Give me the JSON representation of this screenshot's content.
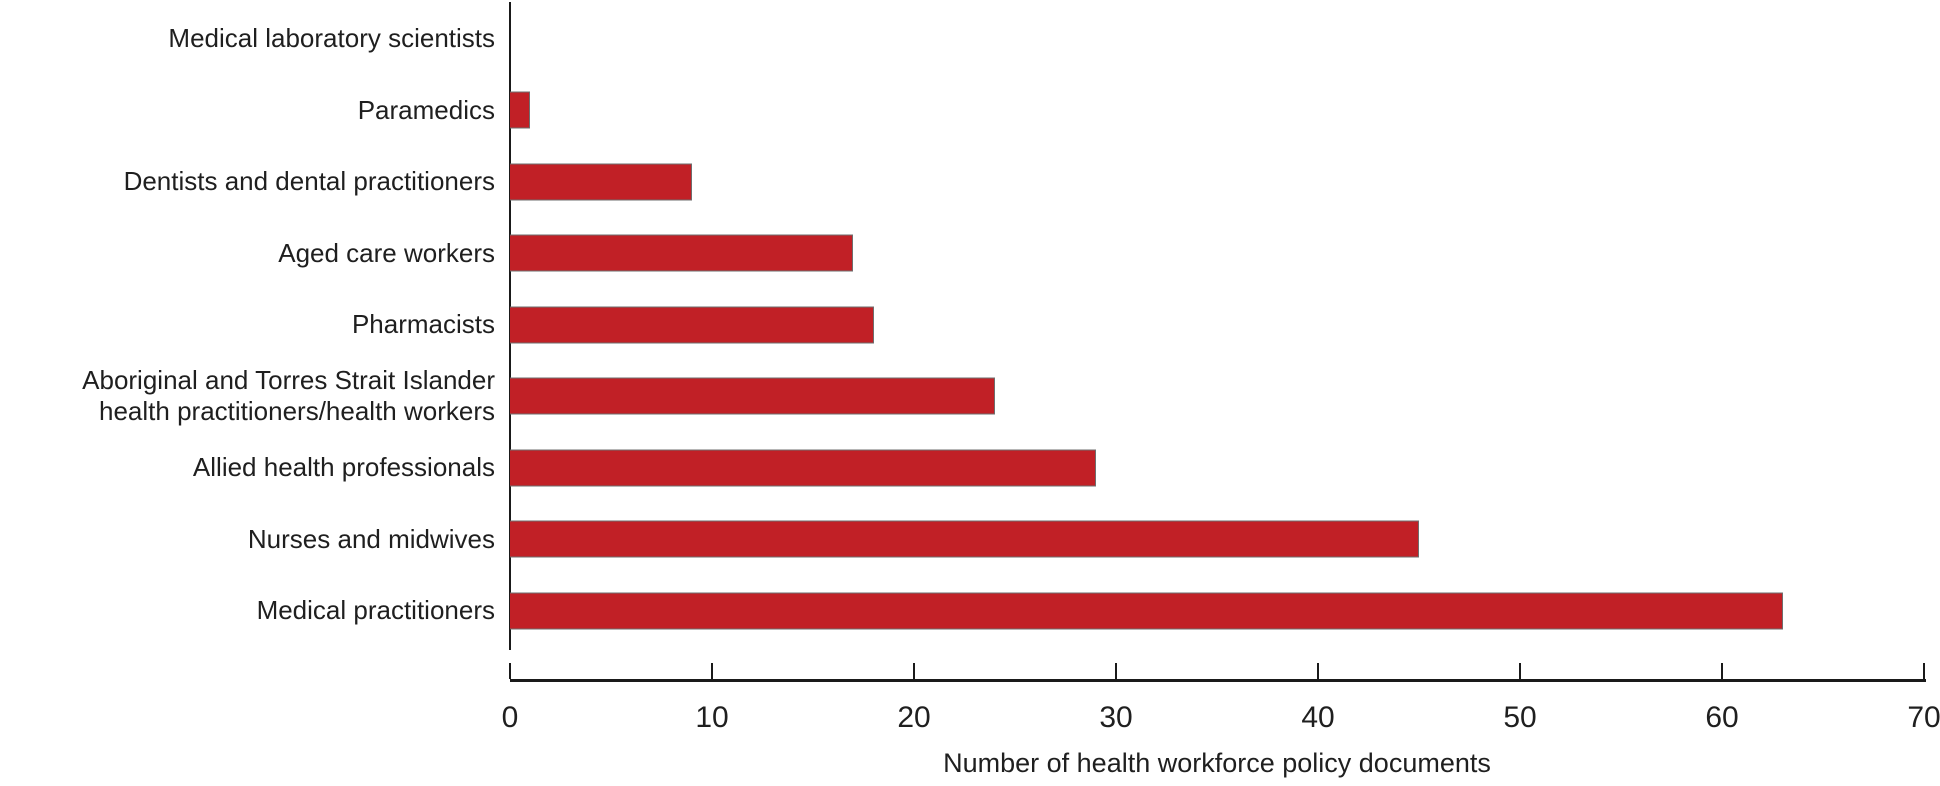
{
  "chart_data": {
    "type": "bar",
    "orientation": "horizontal",
    "categories": [
      "Medical laboratory scientists",
      "Paramedics",
      "Dentists and dental practitioners",
      "Aged care workers",
      "Pharmacists",
      "Aboriginal and Torres Strait Islander\nhealth practitioners/health workers",
      "Allied health professionals",
      "Nurses and midwives",
      "Medical practitioners"
    ],
    "values": [
      0,
      1,
      9,
      17,
      18,
      24,
      29,
      45,
      63
    ],
    "xlabel": "Number of health workforce policy documents",
    "x_ticks": [
      "0",
      "10",
      "20",
      "30",
      "40",
      "50",
      "60",
      "70"
    ],
    "xlim": [
      0,
      70
    ],
    "grid": false,
    "legend": "none",
    "bar_color": "#c12026",
    "bar_border_color": "#6e6e6e",
    "axis_color": "#1a1a1a",
    "text_color": "#1f1f1f"
  }
}
